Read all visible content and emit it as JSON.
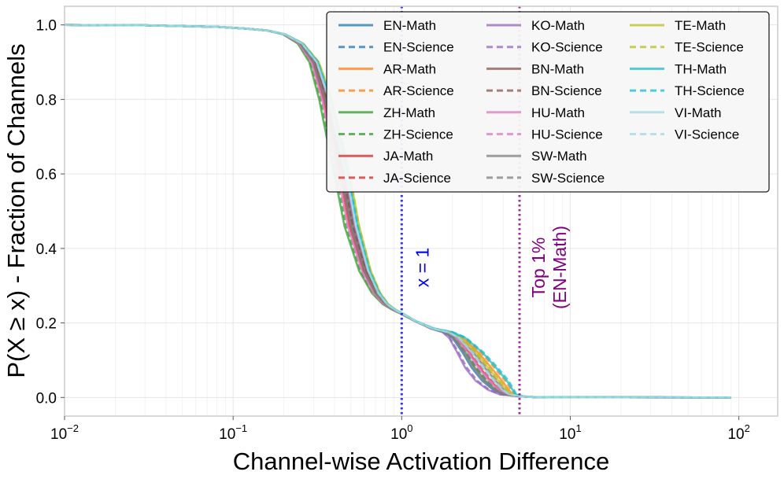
{
  "chart_data": {
    "type": "line",
    "title": "",
    "xlabel": "Channel-wise Activation Difference",
    "ylabel": "P(X ≥ x) - Fraction of Channels",
    "xscale": "log",
    "xlim": [
      0.01,
      170
    ],
    "ylim": [
      -0.05,
      1.05
    ],
    "x_ticks": [
      {
        "value": 0.01,
        "base": "10",
        "exp": "−2"
      },
      {
        "value": 0.1,
        "base": "10",
        "exp": "−1"
      },
      {
        "value": 1,
        "base": "10",
        "exp": "0"
      },
      {
        "value": 10,
        "base": "10",
        "exp": "1"
      },
      {
        "value": 100,
        "base": "10",
        "exp": "2"
      }
    ],
    "y_ticks": [
      {
        "value": 0.0,
        "label": "0.0"
      },
      {
        "value": 0.2,
        "label": "0.2"
      },
      {
        "value": 0.4,
        "label": "0.4"
      },
      {
        "value": 0.6,
        "label": "0.6"
      },
      {
        "value": 0.8,
        "label": "0.8"
      },
      {
        "value": 1.0,
        "label": "1.0"
      }
    ],
    "grid": true,
    "legend_position": "top-right",
    "x": [
      0.01,
      0.03,
      0.08,
      0.12,
      0.16,
      0.2,
      0.25,
      0.3,
      0.35,
      0.4,
      0.45,
      0.5,
      0.6,
      0.7,
      0.8,
      0.9,
      1.0,
      1.2,
      1.5,
      1.8,
      2.0,
      2.3,
      2.6,
      3.0,
      3.5,
      4.0,
      5.0,
      6.0,
      8.0,
      20.0,
      90.0
    ],
    "base_y": [
      1.0,
      0.999,
      0.995,
      0.99,
      0.985,
      0.975,
      0.95,
      0.9,
      0.8,
      0.68,
      0.57,
      0.46,
      0.34,
      0.28,
      0.25,
      0.235,
      0.225,
      0.205,
      0.185,
      0.175,
      0.16,
      0.12,
      0.08,
      0.045,
      0.02,
      0.008,
      0.003,
      0.001,
      0.0005,
      0.0003,
      0.0
    ],
    "series": [
      {
        "name": "EN-Math",
        "color": "#1f77b4",
        "dash": false,
        "xshift": 0.0,
        "tshift": 0.0
      },
      {
        "name": "EN-Science",
        "color": "#1f77b4",
        "dash": true,
        "xshift": 0.01,
        "tshift": 0.03
      },
      {
        "name": "AR-Math",
        "color": "#ff7f0e",
        "dash": false,
        "xshift": 0.02,
        "tshift": 0.12
      },
      {
        "name": "AR-Science",
        "color": "#ff7f0e",
        "dash": true,
        "xshift": 0.03,
        "tshift": 0.14
      },
      {
        "name": "ZH-Math",
        "color": "#2ca02c",
        "dash": false,
        "xshift": -0.04,
        "tshift": 0.02
      },
      {
        "name": "ZH-Science",
        "color": "#2ca02c",
        "dash": true,
        "xshift": -0.03,
        "tshift": 0.03
      },
      {
        "name": "JA-Math",
        "color": "#d62728",
        "dash": false,
        "xshift": -0.01,
        "tshift": 0.05
      },
      {
        "name": "JA-Science",
        "color": "#d62728",
        "dash": true,
        "xshift": 0.0,
        "tshift": 0.06
      },
      {
        "name": "KO-Math",
        "color": "#9467bd",
        "dash": false,
        "xshift": 0.02,
        "tshift": -0.04
      },
      {
        "name": "KO-Science",
        "color": "#9467bd",
        "dash": true,
        "xshift": 0.02,
        "tshift": -0.03
      },
      {
        "name": "BN-Math",
        "color": "#8c564b",
        "dash": false,
        "xshift": 0.01,
        "tshift": 0.08
      },
      {
        "name": "BN-Science",
        "color": "#8c564b",
        "dash": true,
        "xshift": 0.01,
        "tshift": 0.09
      },
      {
        "name": "HU-Math",
        "color": "#e377c2",
        "dash": false,
        "xshift": -0.02,
        "tshift": 0.04
      },
      {
        "name": "HU-Science",
        "color": "#e377c2",
        "dash": true,
        "xshift": -0.02,
        "tshift": 0.05
      },
      {
        "name": "SW-Math",
        "color": "#7f7f7f",
        "dash": false,
        "xshift": 0.0,
        "tshift": 0.01
      },
      {
        "name": "SW-Science",
        "color": "#7f7f7f",
        "dash": true,
        "xshift": 0.0,
        "tshift": 0.02
      },
      {
        "name": "TE-Math",
        "color": "#bcbd22",
        "dash": false,
        "xshift": 0.05,
        "tshift": 0.1
      },
      {
        "name": "TE-Science",
        "color": "#bcbd22",
        "dash": true,
        "xshift": 0.05,
        "tshift": 0.11
      },
      {
        "name": "TH-Math",
        "color": "#17becf",
        "dash": false,
        "xshift": 0.04,
        "tshift": 0.15
      },
      {
        "name": "TH-Science",
        "color": "#17becf",
        "dash": true,
        "xshift": 0.04,
        "tshift": 0.16
      },
      {
        "name": "VI-Math",
        "color": "#9edae5",
        "dash": false,
        "xshift": 0.03,
        "tshift": 0.07
      },
      {
        "name": "VI-Science",
        "color": "#9edae5",
        "dash": true,
        "xshift": 0.03,
        "tshift": 0.08
      }
    ],
    "vlines": [
      {
        "x": 1.0,
        "color": "#0000ff",
        "label": "x = 1",
        "label_color": "#0000ff"
      },
      {
        "x": 5.0,
        "color": "#800080",
        "label_line1": "Top 1%",
        "label_line2": "(EN-Math)",
        "label_color": "#800080"
      }
    ]
  }
}
